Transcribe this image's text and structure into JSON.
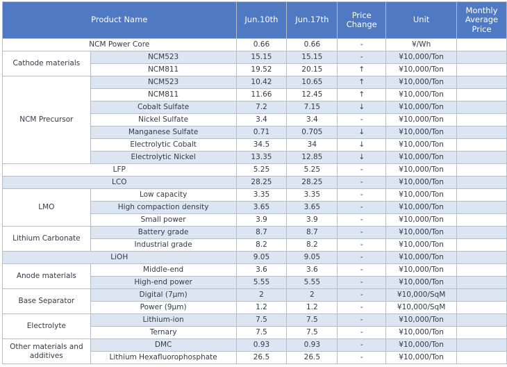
{
  "header": {
    "product_name": "Product Name",
    "jun10": "Jun.10th",
    "jun17": "Jun.17th",
    "price_change": "Price Change",
    "unit": "Unit",
    "monthly_avg": "Monthly Average Price"
  },
  "rows": [
    {
      "group": "",
      "product": "NCM Power Core",
      "span": true,
      "jun10": "0.66",
      "jun17": "0.66",
      "change": "-",
      "unit": "¥/Wh",
      "monthly": "",
      "shade": false
    },
    {
      "group": "Cathode materials",
      "product": "NCM523",
      "jun10": "15.15",
      "jun17": "15.15",
      "change": "-",
      "unit": "¥10,000/Ton",
      "monthly": "",
      "shade": true
    },
    {
      "group": "",
      "product": "NCM811",
      "jun10": "19.52",
      "jun17": "20.15",
      "change": "↑",
      "unit": "¥10,000/Ton",
      "monthly": "",
      "shade": false
    },
    {
      "group": "NCM Precursor",
      "product": "NCM523",
      "jun10": "10.42",
      "jun17": "10.65",
      "change": "↑",
      "unit": "¥10,000/Ton",
      "monthly": "",
      "shade": true
    },
    {
      "group": "",
      "product": "NCM811",
      "jun10": "11.66",
      "jun17": "12.45",
      "change": "↑",
      "unit": "¥10,000/Ton",
      "monthly": "",
      "shade": false
    },
    {
      "group": "",
      "product": "Cobalt Sulfate",
      "jun10": "7.2",
      "jun17": "7.15",
      "change": "↓",
      "unit": "¥10,000/Ton",
      "monthly": "",
      "shade": true
    },
    {
      "group": "",
      "product": "Nickel Sulfate",
      "jun10": "3.4",
      "jun17": "3.4",
      "change": "-",
      "unit": "¥10,000/Ton",
      "monthly": "",
      "shade": false
    },
    {
      "group": "",
      "product": "Manganese Sulfate",
      "jun10": "0.71",
      "jun17": "0.705",
      "change": "↓",
      "unit": "¥10,000/Ton",
      "monthly": "",
      "shade": true
    },
    {
      "group": "",
      "product": "Electrolytic Cobalt",
      "jun10": "34.5",
      "jun17": "34",
      "change": "↓",
      "unit": "¥10,000/Ton",
      "monthly": "",
      "shade": false
    },
    {
      "group": "",
      "product": "Electrolytic Nickel",
      "jun10": "13.35",
      "jun17": "12.85",
      "change": "↓",
      "unit": "¥10,000/Ton",
      "monthly": "",
      "shade": true
    },
    {
      "group": "",
      "product": "LFP",
      "span": true,
      "jun10": "5.25",
      "jun17": "5.25",
      "change": "-",
      "unit": "¥10,000/Ton",
      "monthly": "",
      "shade": false
    },
    {
      "group": "",
      "product": "LCO",
      "span": true,
      "jun10": "28.25",
      "jun17": "28.25",
      "change": "-",
      "unit": "¥10,000/Ton",
      "monthly": "",
      "shade": true
    },
    {
      "group": "LMO",
      "product": "Low capacity",
      "jun10": "3.35",
      "jun17": "3.35",
      "change": "-",
      "unit": "¥10,000/Ton",
      "monthly": "",
      "shade": false
    },
    {
      "group": "",
      "product": "High compaction density",
      "jun10": "3.65",
      "jun17": "3.65",
      "change": "-",
      "unit": "¥10,000/Ton",
      "monthly": "",
      "shade": true
    },
    {
      "group": "",
      "product": "Small power",
      "jun10": "3.9",
      "jun17": "3.9",
      "change": "-",
      "unit": "¥10,000/Ton",
      "monthly": "",
      "shade": false
    },
    {
      "group": "Lithium Carbonate",
      "product": "Battery grade",
      "jun10": "8.7",
      "jun17": "8.7",
      "change": "-",
      "unit": "¥10,000/Ton",
      "monthly": "",
      "shade": true
    },
    {
      "group": "",
      "product": "Industrial grade",
      "jun10": "8.2",
      "jun17": "8.2",
      "change": "-",
      "unit": "¥10,000/Ton",
      "monthly": "",
      "shade": false
    },
    {
      "group": "",
      "product": "LiOH",
      "span": true,
      "jun10": "9.05",
      "jun17": "9.05",
      "change": "-",
      "unit": "¥10,000/Ton",
      "monthly": "",
      "shade": true
    },
    {
      "group": "Anode materials",
      "product": "Middle-end",
      "jun10": "3.6",
      "jun17": "3.6",
      "change": "-",
      "unit": "¥10,000/Ton",
      "monthly": "",
      "shade": false
    },
    {
      "group": "",
      "product": "High-end power",
      "jun10": "5.55",
      "jun17": "5.55",
      "change": "-",
      "unit": "¥10,000/Ton",
      "monthly": "",
      "shade": true
    },
    {
      "group": "Base Separator",
      "product": "Digital (7μm)",
      "jun10": "2",
      "jun17": "2",
      "change": "-",
      "unit": "¥10,000/SqM",
      "monthly": "",
      "shade": true
    },
    {
      "group": "",
      "product": "Power (9μm)",
      "jun10": "1.2",
      "jun17": "1.2",
      "change": "-",
      "unit": "¥10,000/SqM",
      "monthly": "",
      "shade": false
    },
    {
      "group": "Electrolyte",
      "product": "Lithium-ion",
      "jun10": "7.5",
      "jun17": "7.5",
      "change": "-",
      "unit": "¥10,000/Ton",
      "monthly": "",
      "shade": true
    },
    {
      "group": "",
      "product": "Ternary",
      "jun10": "7.5",
      "jun17": "7.5",
      "change": "-",
      "unit": "¥10,000/Ton",
      "monthly": "",
      "shade": false
    },
    {
      "group": "Other materials and additives",
      "product": "DMC",
      "jun10": "0.93",
      "jun17": "0.93",
      "change": "-",
      "unit": "¥10,000/Ton",
      "monthly": "",
      "shade": true
    },
    {
      "group": "",
      "product": "Lithium Hexafluorophosphate",
      "jun10": "26.5",
      "jun17": "26.5",
      "change": "-",
      "unit": "¥10,000/Ton",
      "monthly": "",
      "shade": false
    }
  ]
}
